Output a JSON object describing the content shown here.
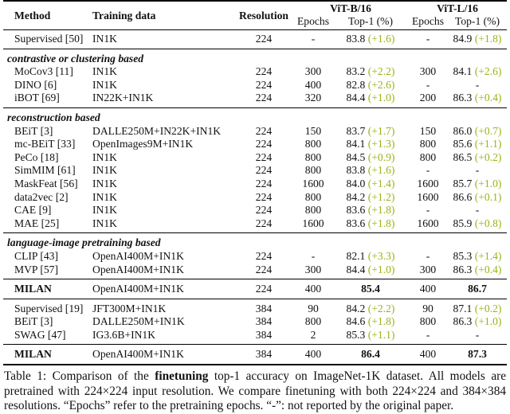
{
  "colors": {
    "delta_green": "#98b414",
    "text": "#111111"
  },
  "table": {
    "headers": {
      "method": "Method",
      "training_data": "Training data",
      "resolution": "Resolution",
      "vitb": "ViT-B/16",
      "vitl": "ViT-L/16",
      "epochs": "Epochs",
      "top1": "Top-1 (%)"
    },
    "sections": [
      {
        "label": null,
        "rule": "none",
        "rows": [
          {
            "method": "Supervised [50]",
            "data": "IN1K",
            "res": "224",
            "e_b": "-",
            "t_b": "83.8",
            "d_b": "(+1.6)",
            "e_l": "-",
            "t_l": "84.9",
            "d_l": "(+1.8)",
            "bold": false
          }
        ]
      },
      {
        "label": "contrastive or clustering based",
        "rule": "normal",
        "rows": [
          {
            "method": "MoCov3 [11]",
            "data": "IN1K",
            "res": "224",
            "e_b": "300",
            "t_b": "83.2",
            "d_b": "(+2.2)",
            "e_l": "300",
            "t_l": "84.1",
            "d_l": "(+2.6)",
            "bold": false
          },
          {
            "method": "DINO [6]",
            "data": "IN1K",
            "res": "224",
            "e_b": "400",
            "t_b": "82.8",
            "d_b": "(+2.6)",
            "e_l": "-",
            "t_l": "-",
            "d_l": "",
            "bold": false
          },
          {
            "method": "iBOT [69]",
            "data": "IN22K+IN1K",
            "res": "224",
            "e_b": "320",
            "t_b": "84.4",
            "d_b": "(+1.0)",
            "e_l": "200",
            "t_l": "86.3",
            "d_l": "(+0.4)",
            "bold": false
          }
        ]
      },
      {
        "label": "reconstruction based",
        "rule": "normal",
        "rows": [
          {
            "method": "BEiT [3]",
            "data": "DALLE250M+IN22K+IN1K",
            "res": "224",
            "e_b": "150",
            "t_b": "83.7",
            "d_b": "(+1.7)",
            "e_l": "150",
            "t_l": "86.0",
            "d_l": "(+0.7)",
            "bold": false
          },
          {
            "method": "mc-BEiT [33]",
            "data": "OpenImages9M+IN1K",
            "res": "224",
            "e_b": "800",
            "t_b": "84.1",
            "d_b": "(+1.3)",
            "e_l": "800",
            "t_l": "85.6",
            "d_l": "(+1.1)",
            "bold": false
          },
          {
            "method": "PeCo [18]",
            "data": "IN1K",
            "res": "224",
            "e_b": "800",
            "t_b": "84.5",
            "d_b": "(+0.9)",
            "e_l": "800",
            "t_l": "86.5",
            "d_l": "(+0.2)",
            "bold": false
          },
          {
            "method": "SimMIM [61]",
            "data": "IN1K",
            "res": "224",
            "e_b": "800",
            "t_b": "83.8",
            "d_b": "(+1.6)",
            "e_l": "-",
            "t_l": "-",
            "d_l": "",
            "bold": false
          },
          {
            "method": "MaskFeat [56]",
            "data": "IN1K",
            "res": "224",
            "e_b": "1600",
            "t_b": "84.0",
            "d_b": "(+1.4)",
            "e_l": "1600",
            "t_l": "85.7",
            "d_l": "(+1.0)",
            "bold": false
          },
          {
            "method": "data2vec [2]",
            "data": "IN1K",
            "res": "224",
            "e_b": "800",
            "t_b": "84.2",
            "d_b": "(+1.2)",
            "e_l": "1600",
            "t_l": "86.6",
            "d_l": "(+0.1)",
            "bold": false
          },
          {
            "method": "CAE [9]",
            "data": "IN1K",
            "res": "224",
            "e_b": "800",
            "t_b": "83.6",
            "d_b": "(+1.8)",
            "e_l": "-",
            "t_l": "-",
            "d_l": "",
            "bold": false
          },
          {
            "method": "MAE [25]",
            "data": "IN1K",
            "res": "224",
            "e_b": "1600",
            "t_b": "83.6",
            "d_b": "(+1.8)",
            "e_l": "1600",
            "t_l": "85.9",
            "d_l": "(+0.8)",
            "bold": false
          }
        ]
      },
      {
        "label": "language-image pretraining based",
        "rule": "normal",
        "rows": [
          {
            "method": "CLIP [43]",
            "data": "OpenAI400M+IN1K",
            "res": "224",
            "e_b": "-",
            "t_b": "82.1",
            "d_b": "(+3.3)",
            "e_l": "-",
            "t_l": "85.3",
            "d_l": "(+1.4)",
            "bold": false
          },
          {
            "method": "MVP [57]",
            "data": "OpenAI400M+IN1K",
            "res": "224",
            "e_b": "300",
            "t_b": "84.4",
            "d_b": "(+1.0)",
            "e_l": "300",
            "t_l": "86.3",
            "d_l": "(+0.4)",
            "bold": false
          }
        ]
      },
      {
        "label": null,
        "rule": "normal",
        "rows": [
          {
            "method": "MILAN",
            "data": "OpenAI400M+IN1K",
            "res": "224",
            "e_b": "400",
            "t_b": "85.4",
            "d_b": "",
            "e_l": "400",
            "t_l": "86.7",
            "d_l": "",
            "bold": true
          }
        ]
      },
      {
        "label": null,
        "rule": "thick",
        "rows": [
          {
            "method": "Supervised [19]",
            "data": "JFT300M+IN1K",
            "res": "384",
            "e_b": "90",
            "t_b": "84.2",
            "d_b": "(+2.2)",
            "e_l": "90",
            "t_l": "87.1",
            "d_l": "(+0.2)",
            "bold": false
          },
          {
            "method": "BEiT [3]",
            "data": "DALLE250M+IN1K",
            "res": "384",
            "e_b": "800",
            "t_b": "84.6",
            "d_b": "(+1.8)",
            "e_l": "800",
            "t_l": "86.3",
            "d_l": "(+1.0)",
            "bold": false
          },
          {
            "method": "SWAG [47]",
            "data": "IG3.6B+IN1K",
            "res": "384",
            "e_b": "2",
            "t_b": "85.3",
            "d_b": "(+1.1)",
            "e_l": "-",
            "t_l": "-",
            "d_l": "",
            "bold": false
          }
        ]
      },
      {
        "label": null,
        "rule": "normal",
        "rows": [
          {
            "method": "MILAN",
            "data": "OpenAI400M+IN1K",
            "res": "384",
            "e_b": "400",
            "t_b": "86.4",
            "d_b": "",
            "e_l": "400",
            "t_l": "87.3",
            "d_l": "",
            "bold": true
          }
        ]
      }
    ]
  },
  "caption": {
    "prefix": "Table 1: Comparison of the ",
    "bold_word": "finetuning",
    "rest": " top-1 accuracy on ImageNet-1K dataset. All models are pretrained with 224×224 input resolution. We compare finetuning with both 224×224 and 384×384 resolutions. “Epochs” refer to the pretraining epochs. “-”: not reported by the original paper."
  }
}
